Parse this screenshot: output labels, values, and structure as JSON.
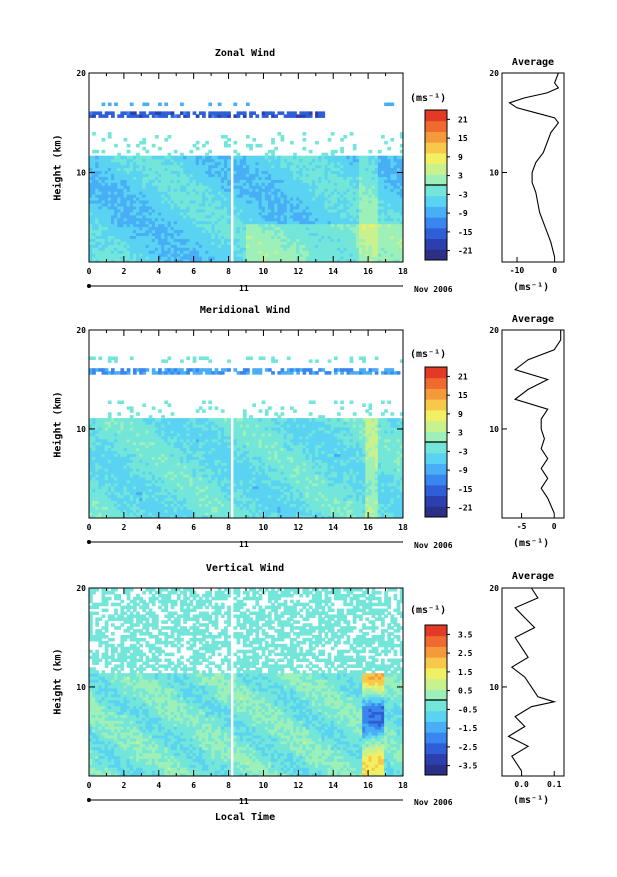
{
  "footer": {
    "date_label": "Nov 2006",
    "day_label": "11",
    "xlabel": "Local Time"
  },
  "colorbar_unit": "(ms⁻¹)",
  "chart_data": [
    {
      "type": "heatmap",
      "title": "Zonal Wind",
      "xlabel": "",
      "ylabel": "Height (km)",
      "xlim": [
        0,
        18
      ],
      "ylim": [
        1,
        20
      ],
      "x_ticks": [
        0,
        2,
        4,
        6,
        8,
        10,
        12,
        14,
        16,
        18
      ],
      "y_ticks": [
        10,
        20
      ],
      "colorbar": {
        "unit": "(ms⁻¹)",
        "ticks": [
          21,
          15,
          9,
          3,
          -3,
          -9,
          -15,
          -21
        ],
        "range": [
          -24,
          24
        ]
      },
      "profile": {
        "title": "Average",
        "xlabel": "(ms⁻¹)",
        "x_ticks": [
          "-10",
          "0"
        ],
        "xlim": [
          -14,
          2.5
        ],
        "heights": [
          1.5,
          3,
          4,
          5,
          6,
          7,
          8,
          9,
          10,
          11,
          12,
          13,
          14,
          15,
          15.5,
          16,
          16.5,
          17,
          17.5,
          18,
          18.5,
          19,
          20
        ],
        "values": [
          0,
          -1,
          -2,
          -3,
          -4,
          -4.5,
          -5,
          -6,
          -6,
          -5,
          -3,
          -2,
          -1,
          1,
          0,
          -5,
          -10,
          -12,
          -8,
          -2,
          1,
          0,
          1
        ]
      }
    },
    {
      "type": "heatmap",
      "title": "Meridional Wind",
      "xlabel": "",
      "ylabel": "Height (km)",
      "xlim": [
        0,
        18
      ],
      "ylim": [
        1,
        20
      ],
      "x_ticks": [
        0,
        2,
        4,
        6,
        8,
        10,
        12,
        14,
        16,
        18
      ],
      "y_ticks": [
        10,
        20
      ],
      "colorbar": {
        "unit": "(ms⁻¹)",
        "ticks": [
          21,
          15,
          9,
          3,
          -3,
          -9,
          -15,
          -21
        ],
        "range": [
          -24,
          24
        ]
      },
      "profile": {
        "title": "Average",
        "xlabel": "(ms⁻¹)",
        "x_ticks": [
          "-5",
          "0"
        ],
        "xlim": [
          -8,
          1.5
        ],
        "heights": [
          1.5,
          3,
          4,
          5,
          6,
          7,
          8,
          9,
          10,
          11,
          12,
          13,
          14,
          15,
          16,
          17,
          18,
          19,
          20
        ],
        "values": [
          0,
          -1,
          -2,
          -1,
          -2,
          -1,
          -2,
          -1.5,
          -2,
          -2,
          -1,
          -6,
          -4,
          -1,
          -6,
          -4,
          0,
          1,
          1
        ]
      }
    },
    {
      "type": "heatmap",
      "title": "Vertical Wind",
      "xlabel": "Local Time",
      "ylabel": "Height (km)",
      "xlim": [
        0,
        18
      ],
      "ylim": [
        1,
        20
      ],
      "x_ticks": [
        0,
        2,
        4,
        6,
        8,
        10,
        12,
        14,
        16,
        18
      ],
      "y_ticks": [
        10,
        20
      ],
      "colorbar": {
        "unit": "(ms⁻¹)",
        "ticks": [
          3.5,
          2.5,
          1.5,
          0.5,
          -0.5,
          -1.5,
          -2.5,
          -3.5
        ],
        "range": [
          -4,
          4
        ]
      },
      "profile": {
        "title": "Average",
        "xlabel": "(ms⁻¹)",
        "x_ticks": [
          "0.0",
          "0.1"
        ],
        "xlim": [
          -0.06,
          0.13
        ],
        "heights": [
          1.5,
          3,
          4,
          5,
          6,
          7,
          8,
          8.5,
          9,
          10,
          11,
          12,
          13,
          14,
          15,
          16,
          17,
          18,
          19,
          20
        ],
        "values": [
          0.0,
          -0.03,
          0.02,
          -0.04,
          0.01,
          -0.02,
          0.03,
          0.1,
          0.05,
          0.03,
          0.01,
          -0.03,
          0.02,
          0.0,
          -0.02,
          0.04,
          0.01,
          -0.02,
          0.05,
          0.03
        ]
      }
    }
  ]
}
